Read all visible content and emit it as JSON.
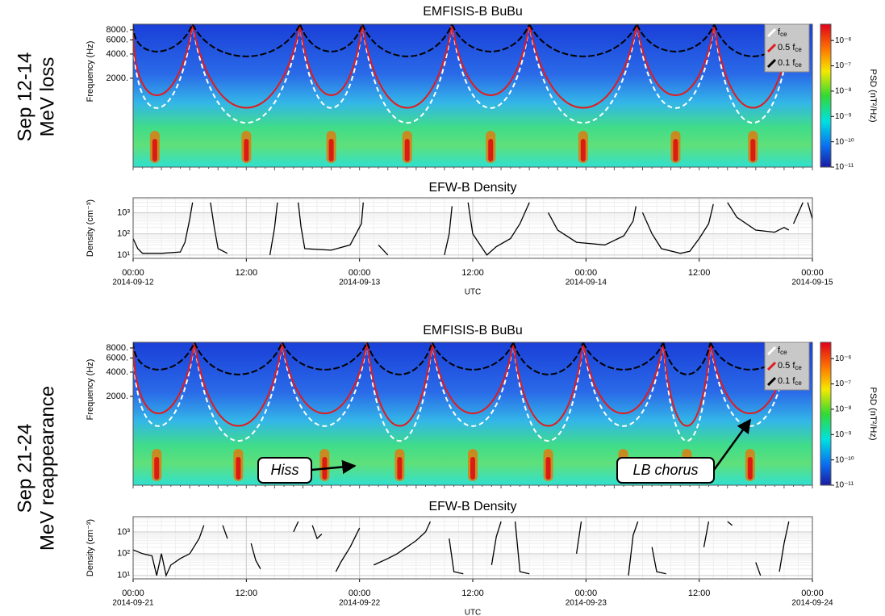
{
  "row_labels": [
    [
      "Sep 12-14",
      "MeV loss"
    ],
    [
      "Sep 21-24",
      "MeV reappearance"
    ]
  ],
  "chart_data": [
    {
      "type": "spectrogram",
      "title": "EMFISIS-B BuBu",
      "ylabel": "Frequency (Hz)",
      "yscale": "log",
      "ylim": [
        157,
        9400
      ],
      "yticks": [
        {
          "value": 2000,
          "label": "2000."
        },
        {
          "value": 4000,
          "label": "4000."
        },
        {
          "value": 6000,
          "label": "6000."
        },
        {
          "value": 8000,
          "label": "8000."
        }
      ],
      "xlim": [
        0,
        72
      ],
      "colorbar_label": "PSD (nT²/Hz)",
      "clim": [
        1e-11,
        4.4e-06
      ],
      "cticks": [
        {
          "value": 1e-06,
          "label": "10⁻⁶"
        },
        {
          "value": 1e-07,
          "label": "10⁻⁷"
        },
        {
          "value": 1e-08,
          "label": "10⁻⁸"
        },
        {
          "value": 1e-09,
          "label": "10⁻⁹"
        },
        {
          "value": 1e-10,
          "label": "10⁻¹⁰"
        },
        {
          "value": 1e-11,
          "label": "10⁻¹¹"
        }
      ],
      "series": [
        {
          "name": "f",
          "subscript": "ce",
          "color": "#ffffff"
        },
        {
          "name": "0.5 f",
          "subscript": "ce",
          "color": "#e31a1c"
        },
        {
          "name": "0.1 f",
          "subscript": "ce",
          "color": "#000000"
        }
      ]
    },
    {
      "type": "line",
      "title": "EFW-B Density",
      "ylabel": "Density (cm⁻³)",
      "yscale": "log",
      "ylim": [
        7,
        5000
      ],
      "yticks": [
        {
          "value": 10,
          "label": "10¹"
        },
        {
          "value": 100,
          "label": "10²"
        },
        {
          "value": 1000,
          "label": "10³"
        }
      ],
      "xlim": [
        0,
        72
      ],
      "xlabel": "UTC",
      "grid": true,
      "color": "#000000",
      "xticks": [
        {
          "value": 0,
          "label": "00:00",
          "sublabel": "2014-09-12"
        },
        {
          "value": 12,
          "label": "12:00"
        },
        {
          "value": 24,
          "label": "00:00",
          "sublabel": "2014-09-13"
        },
        {
          "value": 36,
          "label": "12:00"
        },
        {
          "value": 48,
          "label": "00:00",
          "sublabel": "2014-09-14"
        },
        {
          "value": 60,
          "label": "12:00"
        },
        {
          "value": 72,
          "label": "00:00",
          "sublabel": "2014-09-15"
        }
      ],
      "x": [
        0,
        0.5,
        1,
        3,
        5,
        5.5,
        6,
        6.3,
        7,
        8.2,
        8.6,
        9,
        10,
        12,
        14.5,
        15,
        15.3,
        16,
        17.5,
        17.8,
        18.2,
        21,
        23,
        24.2,
        24.4,
        25,
        26,
        27,
        30,
        33,
        33.5,
        33.8,
        35,
        35.5,
        36,
        37.5,
        38.5,
        40,
        41,
        42,
        43,
        44,
        45,
        47,
        50,
        52,
        53,
        53.3,
        53.6,
        54,
        55,
        56,
        58,
        59,
        60,
        61,
        61.5,
        62,
        63,
        64,
        66,
        68,
        69,
        69.5,
        69.8,
        70,
        71,
        71.3,
        71.5,
        72
      ],
      "values": [
        60,
        20,
        12,
        12,
        14,
        40,
        500,
        3000,
        null,
        3000,
        200,
        20,
        12,
        null,
        10,
        200,
        3000,
        null,
        3000,
        200,
        20,
        17,
        30,
        300,
        3000,
        null,
        30,
        10,
        null,
        10,
        100,
        2000,
        null,
        3000,
        100,
        10,
        25,
        60,
        300,
        3000,
        null,
        1000,
        150,
        40,
        30,
        80,
        400,
        2000,
        null,
        1000,
        100,
        20,
        12,
        15,
        60,
        300,
        2500,
        null,
        3000,
        600,
        150,
        120,
        200,
        150,
        null,
        300,
        3000,
        null,
        3000,
        500
      ]
    },
    {
      "type": "spectrogram",
      "title": "EMFISIS-B BuBu",
      "ylabel": "Frequency (Hz)",
      "yscale": "log",
      "ylim": [
        157,
        9400
      ],
      "yticks": [
        {
          "value": 2000,
          "label": "2000."
        },
        {
          "value": 4000,
          "label": "4000."
        },
        {
          "value": 6000,
          "label": "6000."
        },
        {
          "value": 8000,
          "label": "8000."
        }
      ],
      "xlim": [
        0,
        72
      ],
      "colorbar_label": "PSD (nT²/Hz)",
      "clim": [
        1e-11,
        4.4e-06
      ],
      "cticks": [
        {
          "value": 1e-06,
          "label": "10⁻⁶"
        },
        {
          "value": 1e-07,
          "label": "10⁻⁷"
        },
        {
          "value": 1e-08,
          "label": "10⁻⁸"
        },
        {
          "value": 1e-09,
          "label": "10⁻⁹"
        },
        {
          "value": 1e-10,
          "label": "10⁻¹⁰"
        },
        {
          "value": 1e-11,
          "label": "10⁻¹¹"
        }
      ],
      "series": [
        {
          "name": "f",
          "subscript": "ce",
          "color": "#ffffff"
        },
        {
          "name": "0.5 f",
          "subscript": "ce",
          "color": "#e31a1c"
        },
        {
          "name": "0.1 f",
          "subscript": "ce",
          "color": "#000000"
        }
      ],
      "annotations": [
        "Hiss",
        "LB chorus"
      ]
    },
    {
      "type": "line",
      "title": "EFW-B Density",
      "ylabel": "Density (cm⁻³)",
      "yscale": "log",
      "ylim": [
        7,
        5000
      ],
      "yticks": [
        {
          "value": 10,
          "label": "10¹"
        },
        {
          "value": 100,
          "label": "10²"
        },
        {
          "value": 1000,
          "label": "10³"
        }
      ],
      "xlim": [
        0,
        72
      ],
      "xlabel": "UTC",
      "grid": true,
      "color": "#000000",
      "xticks": [
        {
          "value": 0,
          "label": "00:00",
          "sublabel": "2014-09-21"
        },
        {
          "value": 12,
          "label": "12:00"
        },
        {
          "value": 24,
          "label": "00:00",
          "sublabel": "2014-09-22"
        },
        {
          "value": 36,
          "label": "12:00"
        },
        {
          "value": 48,
          "label": "00:00",
          "sublabel": "2014-09-23"
        },
        {
          "value": 60,
          "label": "12:00"
        },
        {
          "value": 72,
          "label": "00:00",
          "sublabel": "2014-09-24"
        }
      ],
      "x": [
        0,
        1,
        2,
        2.5,
        3,
        3.5,
        4,
        5,
        6,
        7,
        7.5,
        8.5,
        9.5,
        10,
        11,
        12.5,
        13,
        13.5,
        15,
        17,
        17.5,
        18,
        19,
        19.5,
        20,
        21,
        21.5,
        22,
        23,
        24,
        24.8,
        25.5,
        27,
        28,
        29,
        30,
        31,
        31.5,
        32.5,
        33.5,
        34,
        35,
        36.5,
        38,
        38.5,
        39,
        40,
        40.5,
        41,
        42,
        44.5,
        47,
        47.5,
        50,
        52.5,
        53,
        53.5,
        54,
        55,
        55.5,
        56.5,
        58.5,
        60.5,
        61,
        62,
        63,
        63.5,
        64.5,
        66,
        66.5,
        67.5,
        68.5,
        69,
        69.5
      ],
      "values": [
        150,
        100,
        80,
        10,
        100,
        10,
        30,
        60,
        100,
        500,
        2000,
        null,
        2000,
        500,
        null,
        300,
        50,
        20,
        null,
        1000,
        3000,
        null,
        2000,
        500,
        800,
        null,
        15,
        40,
        200,
        1500,
        null,
        30,
        60,
        100,
        200,
        400,
        1000,
        3000,
        null,
        500,
        15,
        12,
        null,
        30,
        600,
        3000,
        null,
        3000,
        15,
        12,
        null,
        100,
        3000,
        null,
        10,
        700,
        3000,
        null,
        200,
        15,
        12,
        null,
        200,
        3000,
        null,
        3000,
        2000,
        null,
        40,
        10,
        null,
        15,
        300,
        3000
      ]
    }
  ]
}
